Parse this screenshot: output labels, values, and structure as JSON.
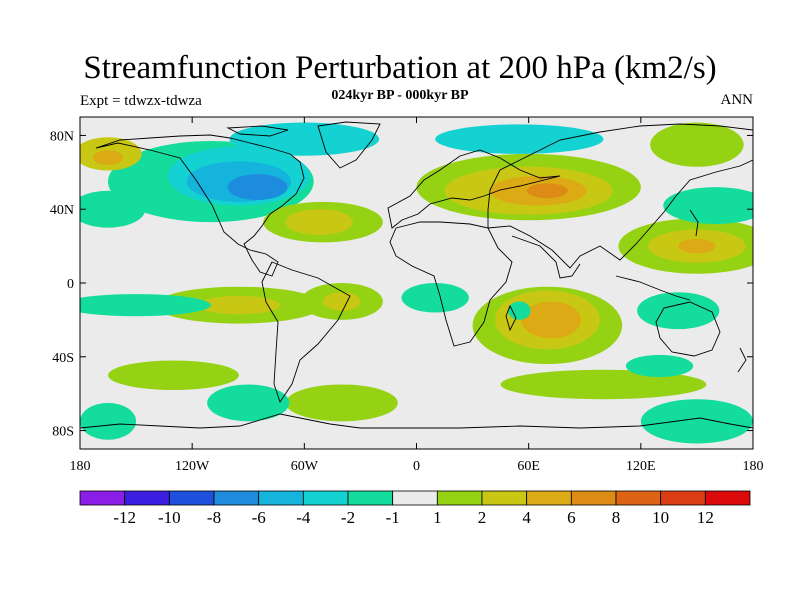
{
  "header": {
    "title": "Streamfunction Perturbation at 200 hPa (km2/s)",
    "subtitle": "024kyr BP - 000kyr BP",
    "expt": "Expt = tdwzx-tdwza",
    "season": "ANN"
  },
  "axes": {
    "lat_ticks": [
      {
        "value": 80,
        "label": "80N"
      },
      {
        "value": 40,
        "label": "40N"
      },
      {
        "value": 0,
        "label": "0"
      },
      {
        "value": -40,
        "label": "40S"
      },
      {
        "value": -80,
        "label": "80S"
      }
    ],
    "lon_ticks": [
      {
        "value": -180,
        "label": "180"
      },
      {
        "value": -120,
        "label": "120W"
      },
      {
        "value": -60,
        "label": "60W"
      },
      {
        "value": 0,
        "label": "0"
      },
      {
        "value": 60,
        "label": "60E"
      },
      {
        "value": 120,
        "label": "120E"
      },
      {
        "value": 180,
        "label": "180"
      }
    ],
    "lon_range": [
      -180,
      180
    ],
    "lat_range": [
      -90,
      90
    ]
  },
  "colorbar": {
    "colors": [
      "#8a1ee6",
      "#3c1ee0",
      "#1e50dc",
      "#1e8cdc",
      "#14b4dc",
      "#14d2d2",
      "#14dc9c",
      "#ebebeb",
      "#96d214",
      "#c8c814",
      "#dcaa14",
      "#dc8c14",
      "#dc6414",
      "#dc3c14",
      "#dc0a0a"
    ],
    "labels": [
      "-12",
      "-10",
      "-8",
      "-6",
      "-4",
      "-2",
      "-1",
      "1",
      "2",
      "4",
      "6",
      "8",
      "10",
      "12"
    ]
  },
  "map": {
    "background": "#ebebeb",
    "anomalies": [
      {
        "lon": -110,
        "lat": 55,
        "rx": 55,
        "ry": 22,
        "color": "#14dc9c"
      },
      {
        "lon": -95,
        "lat": 58,
        "rx": 38,
        "ry": 16,
        "color": "#14d2d2"
      },
      {
        "lon": -95,
        "lat": 55,
        "rx": 28,
        "ry": 11,
        "color": "#14b4dc"
      },
      {
        "lon": -85,
        "lat": 52,
        "rx": 16,
        "ry": 7,
        "color": "#1e8cdc"
      },
      {
        "lon": -60,
        "lat": 78,
        "rx": 40,
        "ry": 9,
        "color": "#14d2d2"
      },
      {
        "lon": 55,
        "lat": 78,
        "rx": 45,
        "ry": 8,
        "color": "#14d2d2"
      },
      {
        "lon": 60,
        "lat": 52,
        "rx": 60,
        "ry": 18,
        "color": "#96d214"
      },
      {
        "lon": 60,
        "lat": 50,
        "rx": 45,
        "ry": 13,
        "color": "#c8c814"
      },
      {
        "lon": 65,
        "lat": 50,
        "rx": 26,
        "ry": 8,
        "color": "#dcaa14"
      },
      {
        "lon": 70,
        "lat": 50,
        "rx": 11,
        "ry": 4,
        "color": "#dc8c14"
      },
      {
        "lon": 150,
        "lat": 75,
        "rx": 25,
        "ry": 12,
        "color": "#96d214"
      },
      {
        "lon": -165,
        "lat": 70,
        "rx": 18,
        "ry": 9,
        "color": "#c8c814"
      },
      {
        "lon": -165,
        "lat": 68,
        "rx": 8,
        "ry": 4,
        "color": "#dcaa14"
      },
      {
        "lon": -50,
        "lat": 33,
        "rx": 32,
        "ry": 11,
        "color": "#96d214"
      },
      {
        "lon": -52,
        "lat": 33,
        "rx": 18,
        "ry": 7,
        "color": "#c8c814"
      },
      {
        "lon": 150,
        "lat": 20,
        "rx": 42,
        "ry": 15,
        "color": "#96d214"
      },
      {
        "lon": 150,
        "lat": 20,
        "rx": 26,
        "ry": 9,
        "color": "#c8c814"
      },
      {
        "lon": 150,
        "lat": 20,
        "rx": 10,
        "ry": 4,
        "color": "#dcaa14"
      },
      {
        "lon": 160,
        "lat": 42,
        "rx": 28,
        "ry": 10,
        "color": "#14dc9c"
      },
      {
        "lon": -165,
        "lat": 40,
        "rx": 20,
        "ry": 10,
        "color": "#14dc9c"
      },
      {
        "lon": 70,
        "lat": -23,
        "rx": 40,
        "ry": 21,
        "color": "#96d214"
      },
      {
        "lon": 70,
        "lat": -20,
        "rx": 28,
        "ry": 16,
        "color": "#c8c814"
      },
      {
        "lon": 72,
        "lat": -20,
        "rx": 16,
        "ry": 10,
        "color": "#dcaa14"
      },
      {
        "lon": -95,
        "lat": -12,
        "rx": 45,
        "ry": 10,
        "color": "#96d214"
      },
      {
        "lon": -95,
        "lat": -12,
        "rx": 22,
        "ry": 5,
        "color": "#c8c814"
      },
      {
        "lon": -40,
        "lat": -10,
        "rx": 22,
        "ry": 10,
        "color": "#96d214"
      },
      {
        "lon": -40,
        "lat": -10,
        "rx": 10,
        "ry": 5,
        "color": "#c8c814"
      },
      {
        "lon": 10,
        "lat": -8,
        "rx": 18,
        "ry": 8,
        "color": "#14dc9c"
      },
      {
        "lon": 140,
        "lat": -15,
        "rx": 22,
        "ry": 10,
        "color": "#14dc9c"
      },
      {
        "lon": -150,
        "lat": -12,
        "rx": 40,
        "ry": 6,
        "color": "#14dc9c"
      },
      {
        "lon": -130,
        "lat": -50,
        "rx": 35,
        "ry": 8,
        "color": "#96d214"
      },
      {
        "lon": -40,
        "lat": -65,
        "rx": 30,
        "ry": 10,
        "color": "#96d214"
      },
      {
        "lon": -90,
        "lat": -65,
        "rx": 22,
        "ry": 10,
        "color": "#14dc9c"
      },
      {
        "lon": 100,
        "lat": -55,
        "rx": 55,
        "ry": 8,
        "color": "#96d214"
      },
      {
        "lon": 130,
        "lat": -45,
        "rx": 18,
        "ry": 6,
        "color": "#14dc9c"
      },
      {
        "lon": 150,
        "lat": -75,
        "rx": 30,
        "ry": 12,
        "color": "#14dc9c"
      },
      {
        "lon": -165,
        "lat": -75,
        "rx": 15,
        "ry": 10,
        "color": "#14dc9c"
      },
      {
        "lon": 55,
        "lat": -15,
        "rx": 6,
        "ry": 5,
        "color": "#14dc9c"
      }
    ]
  }
}
